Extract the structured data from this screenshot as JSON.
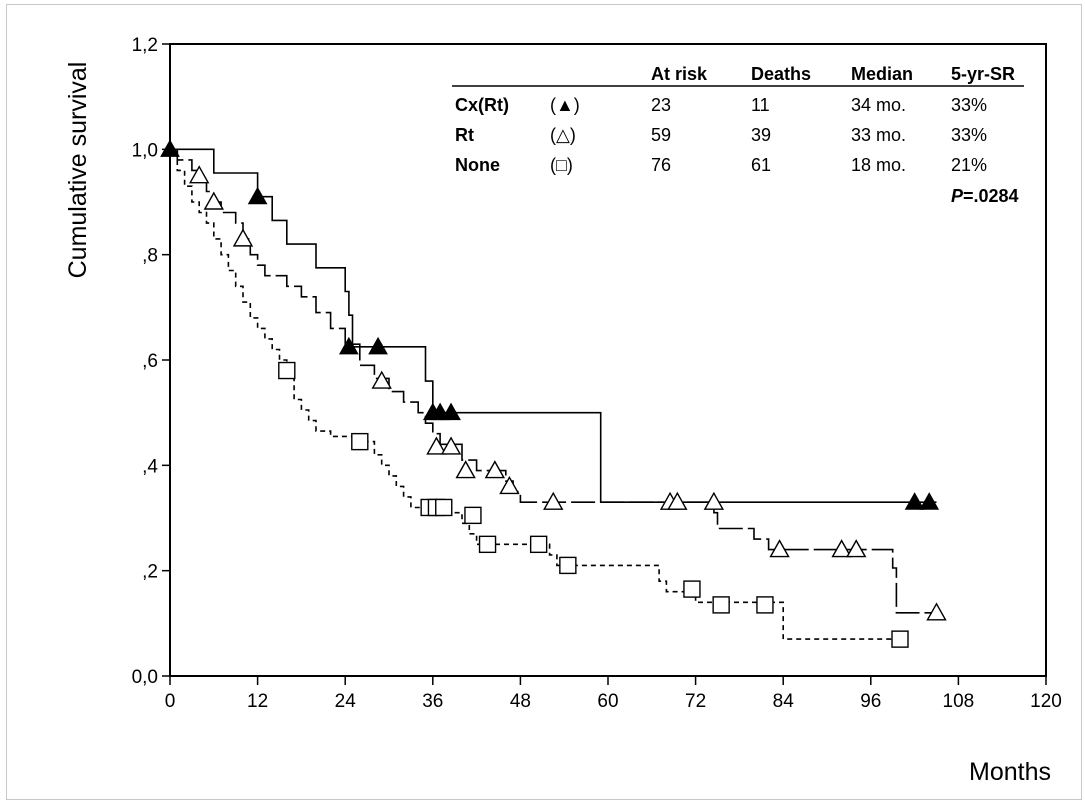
{
  "chart_data": {
    "type": "line",
    "step": true,
    "xlabel": "Months",
    "ylabel": "Cumulative survival",
    "xlim": [
      0,
      120
    ],
    "ylim": [
      0,
      1.2
    ],
    "x_ticks": [
      {
        "value": 0,
        "label": "0"
      },
      {
        "value": 12,
        "label": "12"
      },
      {
        "value": 24,
        "label": "24"
      },
      {
        "value": 36,
        "label": "36"
      },
      {
        "value": 48,
        "label": "48"
      },
      {
        "value": 60,
        "label": "60"
      },
      {
        "value": 72,
        "label": "72"
      },
      {
        "value": 84,
        "label": "84"
      },
      {
        "value": 96,
        "label": "96"
      },
      {
        "value": 108,
        "label": "108"
      },
      {
        "value": 120,
        "label": "120"
      }
    ],
    "y_ticks": [
      {
        "value": 0,
        "label": "0,0"
      },
      {
        "value": 0.2,
        "label": ",2"
      },
      {
        "value": 0.4,
        "label": ",4"
      },
      {
        "value": 0.6,
        "label": ",6"
      },
      {
        "value": 0.8,
        "label": ",8"
      },
      {
        "value": 1.0,
        "label": "1,0"
      },
      {
        "value": 1.2,
        "label": "1,2"
      }
    ],
    "grid": false,
    "legend": {
      "placement": "top-right",
      "headers": [
        "At risk",
        "Deaths",
        "Median",
        "5-yr-SR"
      ],
      "rows": [
        {
          "name": "Cx(Rt)",
          "symbol_text": "(▲)",
          "marker": "filled-triangle",
          "at_risk": "23",
          "deaths": "11",
          "median": "34 mo.",
          "five_yr_sr": "33%"
        },
        {
          "name": "Rt",
          "symbol_text": "(△)",
          "marker": "open-triangle",
          "at_risk": "59",
          "deaths": "39",
          "median": "33 mo.",
          "five_yr_sr": "33%"
        },
        {
          "name": "None",
          "symbol_text": "(□)",
          "marker": "open-square",
          "at_risk": "76",
          "deaths": "61",
          "median": "18 mo.",
          "five_yr_sr": "21%"
        }
      ],
      "p_value_label": "P",
      "p_value": "=.0284"
    },
    "series": [
      {
        "name": "Cx(Rt)",
        "line_style": "solid",
        "marker": "filled-triangle",
        "steps": [
          [
            0,
            1.0
          ],
          [
            6,
            0.955
          ],
          [
            12,
            0.91
          ],
          [
            14,
            0.865
          ],
          [
            16,
            0.82
          ],
          [
            20,
            0.775
          ],
          [
            24,
            0.73
          ],
          [
            24.5,
            0.685
          ],
          [
            25,
            0.625
          ],
          [
            35,
            0.56
          ],
          [
            36,
            0.5
          ],
          [
            59,
            0.33
          ],
          [
            105,
            0.33
          ]
        ],
        "censored": [
          [
            0,
            1.0
          ],
          [
            12,
            0.91
          ],
          [
            24.5,
            0.625
          ],
          [
            28.5,
            0.625
          ],
          [
            36,
            0.5
          ],
          [
            37,
            0.5
          ],
          [
            38.5,
            0.5
          ],
          [
            102,
            0.33
          ],
          [
            104,
            0.33
          ]
        ]
      },
      {
        "name": "Rt",
        "line_style": "long-dash",
        "marker": "open-triangle",
        "steps": [
          [
            0,
            1.0
          ],
          [
            1,
            0.98
          ],
          [
            3,
            0.96
          ],
          [
            4,
            0.94
          ],
          [
            5,
            0.92
          ],
          [
            6,
            0.9
          ],
          [
            7,
            0.88
          ],
          [
            9,
            0.86
          ],
          [
            10,
            0.83
          ],
          [
            11,
            0.8
          ],
          [
            12,
            0.78
          ],
          [
            13,
            0.76
          ],
          [
            16,
            0.74
          ],
          [
            18,
            0.72
          ],
          [
            20,
            0.69
          ],
          [
            22,
            0.66
          ],
          [
            24,
            0.63
          ],
          [
            26,
            0.59
          ],
          [
            28,
            0.565
          ],
          [
            30,
            0.54
          ],
          [
            32,
            0.52
          ],
          [
            34,
            0.5
          ],
          [
            35,
            0.48
          ],
          [
            36,
            0.46
          ],
          [
            37,
            0.44
          ],
          [
            40,
            0.41
          ],
          [
            42,
            0.39
          ],
          [
            46,
            0.37
          ],
          [
            47,
            0.35
          ],
          [
            48,
            0.33
          ],
          [
            74.5,
            0.31
          ],
          [
            75,
            0.28
          ],
          [
            80,
            0.26
          ],
          [
            82,
            0.24
          ],
          [
            99,
            0.205
          ],
          [
            99.5,
            0.12
          ],
          [
            105,
            0.12
          ]
        ],
        "censored": [
          [
            4,
            0.95
          ],
          [
            6,
            0.9
          ],
          [
            10,
            0.83
          ],
          [
            29,
            0.56
          ],
          [
            36.5,
            0.435
          ],
          [
            38.5,
            0.435
          ],
          [
            40.5,
            0.39
          ],
          [
            44.5,
            0.39
          ],
          [
            46.5,
            0.36
          ],
          [
            52.5,
            0.33
          ],
          [
            68.5,
            0.33
          ],
          [
            69.5,
            0.33
          ],
          [
            74.5,
            0.33
          ],
          [
            83.5,
            0.24
          ],
          [
            92,
            0.24
          ],
          [
            94,
            0.24
          ],
          [
            105,
            0.12
          ]
        ]
      },
      {
        "name": "None",
        "line_style": "short-dash",
        "marker": "open-square",
        "steps": [
          [
            0,
            1.0
          ],
          [
            1,
            0.96
          ],
          [
            2,
            0.93
          ],
          [
            3,
            0.9
          ],
          [
            4,
            0.88
          ],
          [
            5,
            0.86
          ],
          [
            6,
            0.83
          ],
          [
            7,
            0.8
          ],
          [
            8,
            0.77
          ],
          [
            9,
            0.74
          ],
          [
            10,
            0.71
          ],
          [
            11,
            0.68
          ],
          [
            12,
            0.66
          ],
          [
            13,
            0.64
          ],
          [
            14,
            0.62
          ],
          [
            15,
            0.6
          ],
          [
            16,
            0.57
          ],
          [
            17,
            0.525
          ],
          [
            18,
            0.505
          ],
          [
            19,
            0.485
          ],
          [
            20,
            0.465
          ],
          [
            22,
            0.455
          ],
          [
            26,
            0.445
          ],
          [
            28,
            0.42
          ],
          [
            29,
            0.4
          ],
          [
            30,
            0.38
          ],
          [
            31,
            0.36
          ],
          [
            32,
            0.34
          ],
          [
            33,
            0.32
          ],
          [
            38,
            0.31
          ],
          [
            40,
            0.29
          ],
          [
            41,
            0.27
          ],
          [
            42,
            0.25
          ],
          [
            52,
            0.23
          ],
          [
            53,
            0.21
          ],
          [
            67,
            0.18
          ],
          [
            68,
            0.16
          ],
          [
            72,
            0.14
          ],
          [
            84,
            0.07
          ],
          [
            100,
            0.07
          ]
        ],
        "censored": [
          [
            16,
            0.58
          ],
          [
            26,
            0.445
          ],
          [
            35.5,
            0.32
          ],
          [
            36.5,
            0.32
          ],
          [
            37.5,
            0.32
          ],
          [
            41.5,
            0.305
          ],
          [
            43.5,
            0.25
          ],
          [
            50.5,
            0.25
          ],
          [
            54.5,
            0.21
          ],
          [
            71.5,
            0.165
          ],
          [
            75.5,
            0.135
          ],
          [
            81.5,
            0.135
          ],
          [
            100,
            0.07
          ]
        ]
      }
    ]
  }
}
